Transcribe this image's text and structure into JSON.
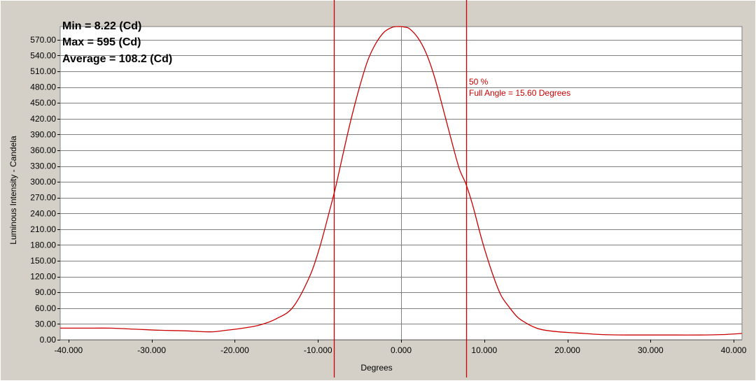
{
  "chart_data": {
    "type": "line",
    "title": "",
    "xlabel": "Degrees",
    "ylabel": "Luminous Intensity - Candela",
    "xlim": [
      -41,
      41
    ],
    "ylim": [
      0,
      595
    ],
    "x_ticks": [
      -40,
      -30,
      -20,
      -10,
      0,
      10,
      20,
      30,
      40
    ],
    "x_tick_labels": [
      "-40.000",
      "-30.000",
      "-20.000",
      "-10.000",
      "0.000",
      "10.000",
      "20.000",
      "30.000",
      "40.000"
    ],
    "y_ticks": [
      0,
      30,
      60,
      90,
      120,
      150,
      180,
      210,
      240,
      270,
      300,
      330,
      360,
      390,
      420,
      450,
      480,
      510,
      540,
      570
    ],
    "y_tick_labels": [
      "0.00",
      "30.00",
      "60.00",
      "90.00",
      "120.00",
      "150.00",
      "180.00",
      "210.00",
      "240.00",
      "270.00",
      "300.00",
      "330.00",
      "360.00",
      "390.00",
      "420.00",
      "450.00",
      "480.00",
      "510.00",
      "540.00",
      "570.00"
    ],
    "grid": true,
    "series": [
      {
        "color": "#cc0000",
        "x": [
          -41,
          -38,
          -35,
          -32,
          -29,
          -26,
          -23,
          -21,
          -19,
          -17,
          -15,
          -13,
          -11,
          -9.8,
          -8.6,
          -7.8,
          -7,
          -6,
          -5,
          -4,
          -3,
          -2,
          -1,
          -0.4,
          0,
          0.4,
          1,
          2,
          3,
          4,
          5,
          6,
          7,
          7.8,
          8.6,
          9.8,
          11,
          12,
          13,
          14,
          15,
          16,
          17,
          19,
          21,
          24,
          27,
          30,
          33,
          36,
          39,
          41
        ],
        "y": [
          22,
          22,
          22,
          20,
          18,
          17,
          15,
          18,
          22,
          28,
          40,
          62,
          120,
          175,
          245,
          295,
          352,
          420,
          480,
          531,
          564,
          585,
          594,
          595,
          595,
          594,
          591,
          574,
          545,
          500,
          442,
          382,
          325,
          296,
          256,
          185,
          125,
          85,
          62,
          43,
          32,
          24,
          19,
          15,
          13,
          10,
          9,
          9,
          9,
          9,
          10,
          12
        ]
      }
    ],
    "markers": [
      {
        "x": -8.1,
        "color": "#cc0000"
      },
      {
        "x": 7.8,
        "color": "#cc0000"
      }
    ],
    "stats": [
      {
        "label": "Min = 8.22 (Cd)"
      },
      {
        "label": "Max = 595 (Cd)"
      },
      {
        "label": "Average = 108.2 (Cd)"
      }
    ],
    "annotation": {
      "line1": "50 %",
      "line2": "Full Angle = 15.60 Degrees",
      "color": "#cc0000"
    }
  }
}
